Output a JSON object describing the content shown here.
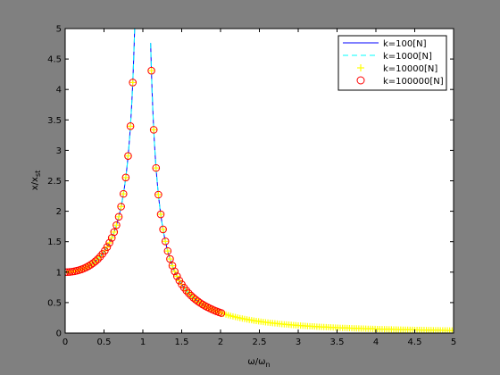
{
  "chart_data": {
    "type": "line",
    "title": "",
    "xlabel": "ω/ω",
    "xlabel_sub": "n",
    "ylabel": "x/x",
    "ylabel_sub": "st",
    "xlim": [
      0,
      5
    ],
    "ylim": [
      0,
      5
    ],
    "xticks": [
      "0",
      "0.5",
      "1",
      "1.5",
      "2",
      "2.5",
      "3",
      "3.5",
      "4",
      "4.5",
      "5"
    ],
    "yticks": [
      "0",
      "0.5",
      "1",
      "1.5",
      "2",
      "2.5",
      "3",
      "3.5",
      "4",
      "4.5",
      "5"
    ],
    "grid": false,
    "legend_position": "top-right",
    "curve_formula": "x/x_st = 1/|1 - r^2|, r = ω/ωn",
    "series": [
      {
        "name": "k=100[N]",
        "style": "solid line",
        "color": "#0000ff",
        "x_range": [
          0,
          5
        ],
        "x_step": 0.01,
        "skip_x": [
          0.9,
          1.1
        ]
      },
      {
        "name": "k=1000[N]",
        "style": "dashed line",
        "color": "#00ffff",
        "x_range": [
          0,
          5
        ],
        "x_step": 0.01,
        "skip_x": [
          0.9,
          1.1
        ]
      },
      {
        "name": "k=10000[N]",
        "style": "plus markers",
        "color": "#ffff00",
        "x_range": [
          0,
          5
        ],
        "x_step": 0.03,
        "skip_x": [
          0.89,
          1.11
        ]
      },
      {
        "name": "k=100000[N]",
        "style": "circle markers",
        "color": "#ff0000",
        "x_range": [
          0,
          2
        ],
        "x_step": 0.03,
        "skip_x": [
          0.89,
          1.11
        ]
      }
    ]
  },
  "colors": {
    "figure_bg": "#808080",
    "axes_bg": "#ffffff",
    "axis": "#000000"
  }
}
